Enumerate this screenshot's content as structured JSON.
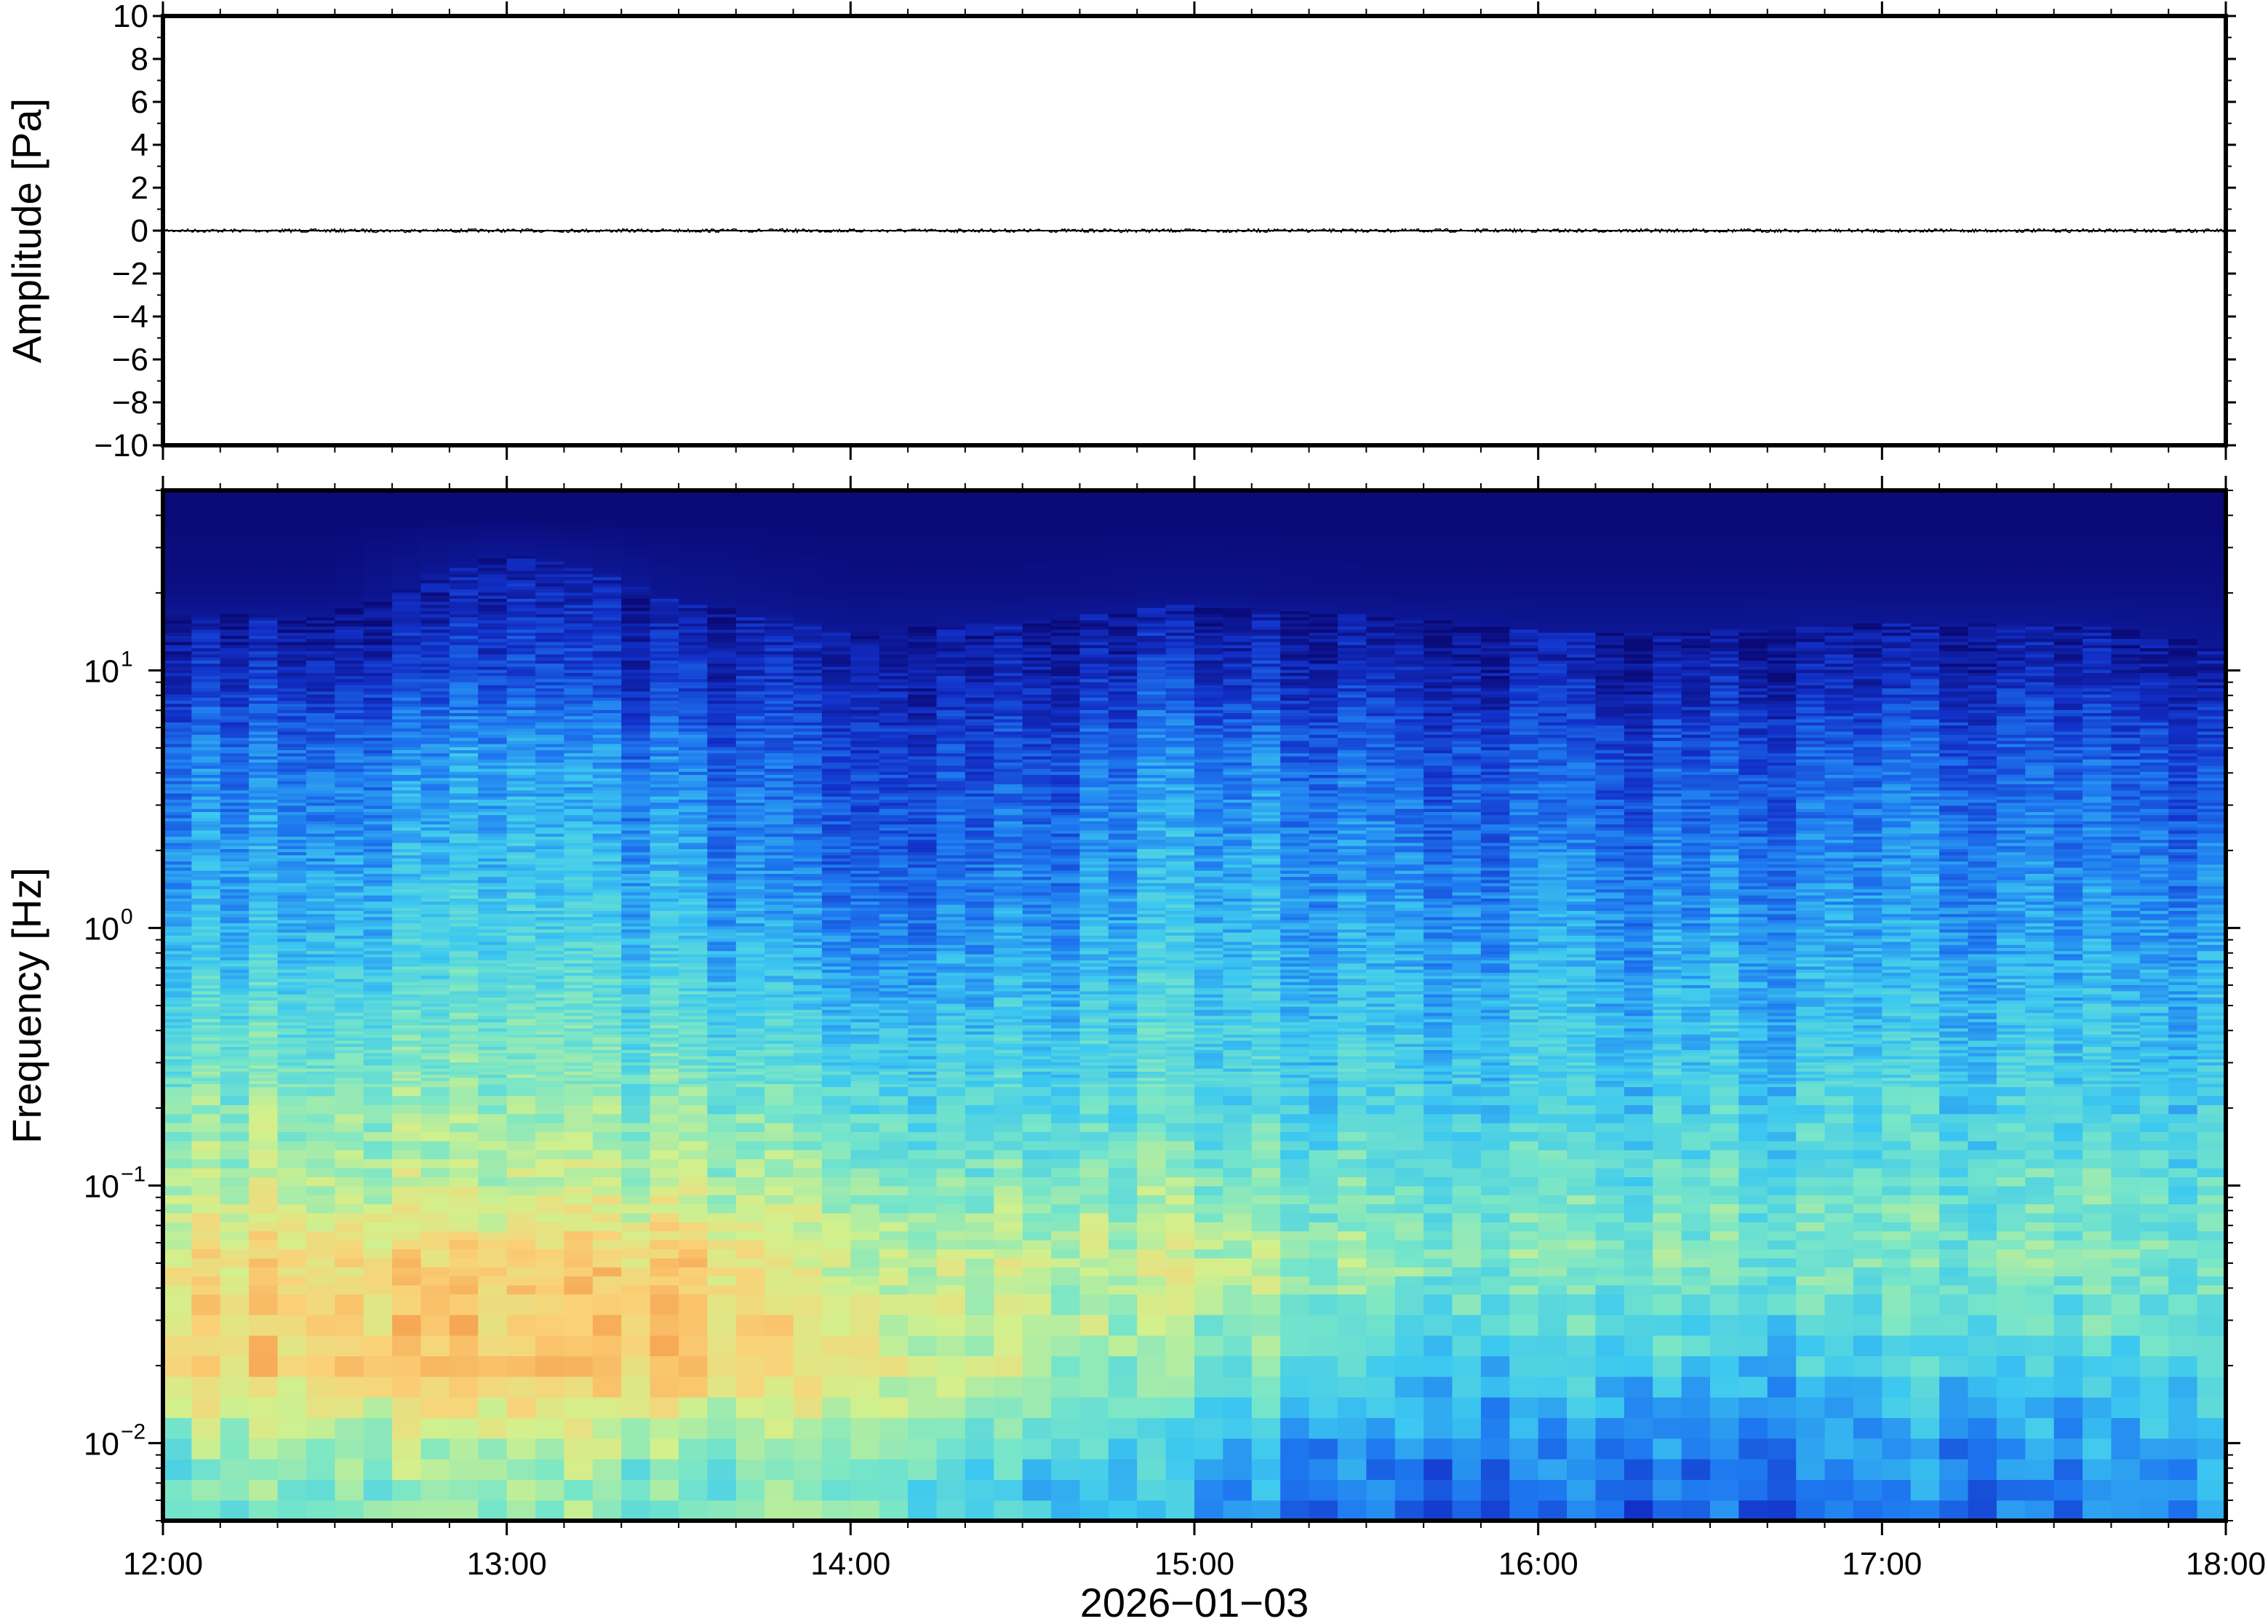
{
  "chart_data": [
    {
      "type": "line",
      "ylabel": "Amplitude [Pa]",
      "ylim": [
        -10,
        10
      ],
      "yticks": [
        10,
        8,
        6,
        4,
        2,
        0,
        -2,
        -4,
        -6,
        -8,
        -10
      ],
      "ytick_labels": [
        "10",
        "8",
        "6",
        "4",
        "2",
        "0",
        "−2",
        "−4",
        "−6",
        "−8",
        "−10"
      ],
      "xlim": [
        "12:00",
        "18:00"
      ],
      "series": [
        {
          "x": [
            "12:00",
            "13:00",
            "14:00",
            "15:00",
            "16:00",
            "17:00",
            "18:00"
          ],
          "values": [
            0,
            0,
            0,
            0,
            0,
            0,
            0
          ],
          "color": "#000000"
        }
      ],
      "grid": false
    },
    {
      "type": "heatmap",
      "xlabel": "2026−01−03",
      "ylabel": "Frequency [Hz]",
      "yscale": "log",
      "ylim": [
        0.005,
        50
      ],
      "yticks": [
        0.01,
        0.1,
        1,
        10
      ],
      "ytick_labels": [
        {
          "base": "10",
          "exp": "−2"
        },
        {
          "base": "10",
          "exp": "−1"
        },
        {
          "base": "10",
          "exp": "0"
        },
        {
          "base": "10",
          "exp": "1"
        }
      ],
      "xlim": [
        "12:00",
        "18:00"
      ],
      "xtick_labels": [
        "12:00",
        "13:00",
        "14:00",
        "15:00",
        "16:00",
        "17:00",
        "18:00"
      ],
      "colormap": [
        "#0a0a78",
        "#1230c8",
        "#1e78f0",
        "#3cc8f0",
        "#78e6c8",
        "#d2f08c",
        "#fad278",
        "#f59646"
      ],
      "x": [
        "12:00",
        "12:30",
        "13:00",
        "13:30",
        "14:00",
        "14:30",
        "15:00",
        "15:30",
        "16:00",
        "16:30",
        "17:00",
        "17:30",
        "18:00"
      ],
      "frequencies": [
        0.007,
        0.01,
        0.02,
        0.05,
        0.1,
        0.2,
        0.5,
        1,
        2,
        5,
        10,
        20,
        40
      ],
      "values": [
        [
          0.55,
          0.6,
          0.62,
          0.55,
          0.6,
          0.45,
          0.4,
          0.28,
          0.25,
          0.25,
          0.3,
          0.28,
          0.35
        ],
        [
          0.62,
          0.66,
          0.68,
          0.62,
          0.65,
          0.52,
          0.45,
          0.35,
          0.3,
          0.3,
          0.35,
          0.33,
          0.4
        ],
        [
          0.82,
          0.88,
          0.88,
          0.85,
          0.75,
          0.68,
          0.6,
          0.48,
          0.45,
          0.45,
          0.45,
          0.45,
          0.5
        ],
        [
          0.8,
          0.84,
          0.82,
          0.84,
          0.68,
          0.7,
          0.72,
          0.62,
          0.58,
          0.58,
          0.58,
          0.58,
          0.58
        ],
        [
          0.68,
          0.7,
          0.68,
          0.68,
          0.6,
          0.58,
          0.62,
          0.55,
          0.53,
          0.53,
          0.53,
          0.53,
          0.52
        ],
        [
          0.6,
          0.62,
          0.6,
          0.58,
          0.5,
          0.5,
          0.52,
          0.48,
          0.46,
          0.46,
          0.48,
          0.46,
          0.45
        ],
        [
          0.5,
          0.5,
          0.52,
          0.48,
          0.38,
          0.42,
          0.48,
          0.42,
          0.4,
          0.4,
          0.42,
          0.4,
          0.4
        ],
        [
          0.42,
          0.42,
          0.45,
          0.4,
          0.28,
          0.34,
          0.44,
          0.36,
          0.34,
          0.34,
          0.36,
          0.34,
          0.34
        ],
        [
          0.36,
          0.36,
          0.4,
          0.34,
          0.22,
          0.28,
          0.4,
          0.32,
          0.28,
          0.28,
          0.32,
          0.3,
          0.28
        ],
        [
          0.28,
          0.28,
          0.34,
          0.26,
          0.16,
          0.2,
          0.32,
          0.24,
          0.2,
          0.2,
          0.24,
          0.22,
          0.18
        ],
        [
          0.14,
          0.14,
          0.18,
          0.12,
          0.08,
          0.1,
          0.16,
          0.12,
          0.08,
          0.08,
          0.1,
          0.1,
          0.06
        ],
        [
          0.02,
          0.02,
          0.1,
          0.04,
          0.02,
          0.02,
          0.03,
          0.02,
          0.02,
          0.02,
          0.02,
          0.02,
          0.02
        ],
        [
          0.0,
          0.0,
          0.0,
          0.0,
          0.0,
          0.0,
          0.0,
          0.0,
          0.0,
          0.0,
          0.0,
          0.0,
          0.0
        ]
      ]
    }
  ]
}
